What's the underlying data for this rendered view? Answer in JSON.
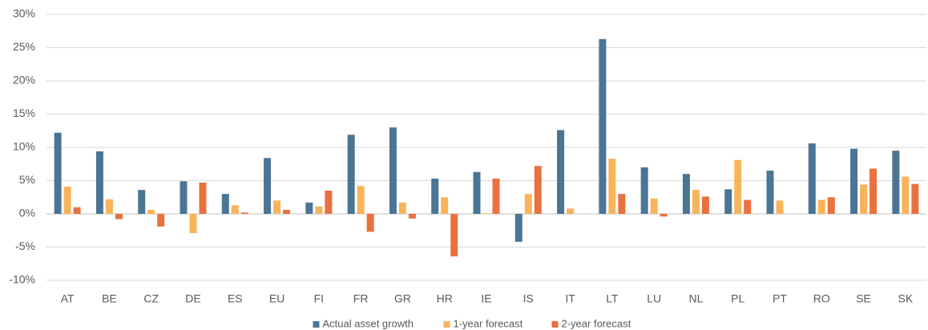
{
  "chart_data": {
    "type": "bar",
    "categories": [
      "AT",
      "BE",
      "CZ",
      "DE",
      "ES",
      "EU",
      "FI",
      "FR",
      "GR",
      "HR",
      "IE",
      "IS",
      "IT",
      "LT",
      "LU",
      "NL",
      "PL",
      "PT",
      "RO",
      "SE",
      "SK"
    ],
    "series": [
      {
        "name": "Actual asset growth",
        "color": "#4a7594",
        "values": [
          12.2,
          9.4,
          3.6,
          4.9,
          3.0,
          8.4,
          1.7,
          11.9,
          13.0,
          5.3,
          6.3,
          -4.2,
          12.6,
          26.3,
          7.0,
          6.0,
          3.7,
          6.5,
          10.6,
          9.8,
          9.5
        ]
      },
      {
        "name": "1-year forecast",
        "color": "#f9b45a",
        "values": [
          4.1,
          2.2,
          0.6,
          -2.9,
          1.3,
          2.0,
          1.1,
          4.2,
          1.7,
          2.5,
          0.1,
          3.0,
          0.8,
          8.3,
          2.3,
          3.6,
          8.1,
          2.0,
          2.1,
          4.4,
          5.6
        ]
      },
      {
        "name": "2-year forecast",
        "color": "#e9713f",
        "values": [
          1.0,
          -0.8,
          -1.9,
          4.7,
          0.2,
          0.6,
          3.5,
          -2.7,
          -0.7,
          -6.4,
          5.3,
          7.2,
          0,
          3.0,
          -0.4,
          2.6,
          2.1,
          0,
          2.5,
          6.8,
          4.5
        ]
      }
    ],
    "ylim": [
      -10,
      30
    ],
    "yticks": [
      {
        "value": -10,
        "label": "-10%"
      },
      {
        "value": -5,
        "label": "-5%"
      },
      {
        "value": 0,
        "label": "0%"
      },
      {
        "value": 5,
        "label": "5%"
      },
      {
        "value": 10,
        "label": "10%"
      },
      {
        "value": 15,
        "label": "15%"
      },
      {
        "value": 20,
        "label": "20%"
      },
      {
        "value": 25,
        "label": "25%"
      },
      {
        "value": 30,
        "label": "30%"
      }
    ],
    "grid": true,
    "legend": "bottom"
  }
}
